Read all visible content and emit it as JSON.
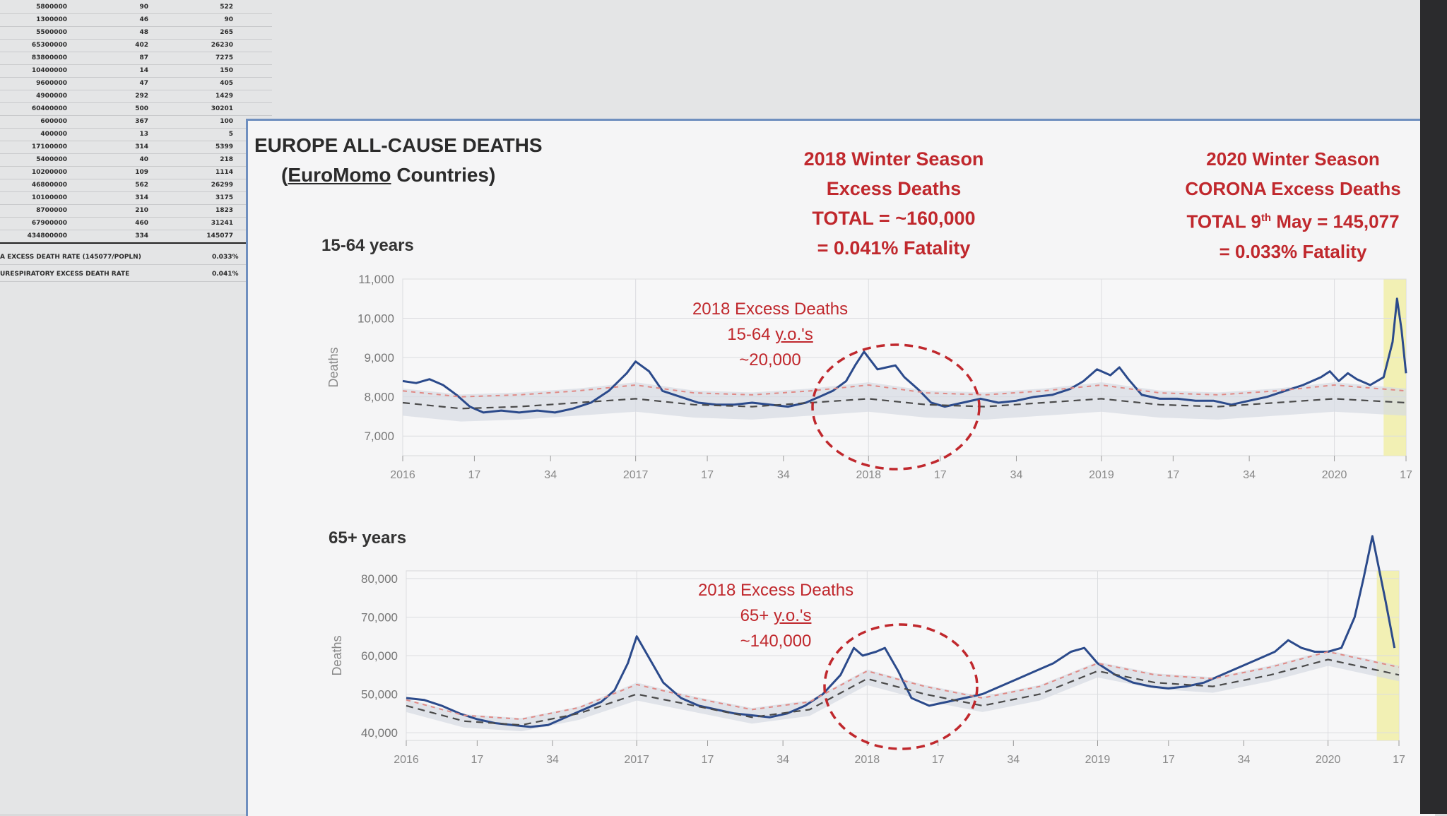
{
  "spreadsheet": {
    "rows": [
      [
        "5800000",
        "90",
        "522"
      ],
      [
        "1300000",
        "46",
        "90"
      ],
      [
        "5500000",
        "48",
        "265"
      ],
      [
        "65300000",
        "402",
        "26230"
      ],
      [
        "83800000",
        "87",
        "7275"
      ],
      [
        "10400000",
        "14",
        "150"
      ],
      [
        "9600000",
        "47",
        "405"
      ],
      [
        "4900000",
        "292",
        "1429"
      ],
      [
        "60400000",
        "500",
        "30201"
      ],
      [
        "600000",
        "367",
        "100"
      ],
      [
        "400000",
        "13",
        "5"
      ],
      [
        "17100000",
        "314",
        "5399"
      ],
      [
        "5400000",
        "40",
        "218"
      ],
      [
        "10200000",
        "109",
        "1114"
      ],
      [
        "46800000",
        "562",
        "26299"
      ],
      [
        "10100000",
        "314",
        "3175"
      ],
      [
        "8700000",
        "210",
        "1823"
      ],
      [
        "67900000",
        "460",
        "31241"
      ]
    ],
    "total": [
      "434800000",
      "334",
      "145077"
    ],
    "notes": [
      {
        "label": "A EXCESS DEATH RATE (145077/POPLN)",
        "value": "0.033%"
      },
      {
        "label": "URESPIRATORY EXCESS DEATH RATE",
        "value": "0.041%"
      }
    ]
  },
  "slide": {
    "title_line1": "EUROPE ALL-CAUSE DEATHS",
    "title_line2_open": "(",
    "title_line2_link": "EuroMomo",
    "title_line2_rest": " Countries)",
    "winter2018": {
      "line1": "2018 Winter Season",
      "line2": "Excess Deaths",
      "line3": "TOTAL = ~160,000",
      "line4": "= 0.041% Fatality"
    },
    "winter2020": {
      "line1": "2020 Winter Season",
      "line2": "CORONA Excess Deaths",
      "line3_pre": "TOTAL 9",
      "line3_sup": "th",
      "line3_post": " May = 145,077",
      "line4": "= 0.033% Fatality"
    },
    "chart1_label": "15-64 years",
    "chart2_label": "65+ years",
    "ann1": {
      "line1": "2018 Excess Deaths",
      "line2_pre": "15-64 ",
      "line2_u": "y.o.'s",
      "line3": "~20,000"
    },
    "ann2": {
      "line1": "2018 Excess Deaths",
      "line2_pre": "65+ ",
      "line2_u": "y.o.'s",
      "line3": "~140,000"
    }
  },
  "colors": {
    "observed": "#2b4a8b",
    "baseline": "#4a4a4a",
    "threshold": "#e08a86",
    "band": "#d5dae3",
    "annotation": "#c0282d",
    "highlight": "#f1eea8"
  },
  "chart_data": [
    {
      "type": "line",
      "title": "15-64 years",
      "ylabel": "Deaths",
      "ylim": [
        6500,
        11000
      ],
      "yticks": [
        7000,
        8000,
        9000,
        10000,
        11000
      ],
      "ytick_labels": [
        "7,000",
        "8,000",
        "9,000",
        "10,000",
        "11,000"
      ],
      "xticks": [
        {
          "week": 0,
          "label": "2016"
        },
        {
          "week": 16,
          "label": "17"
        },
        {
          "week": 33,
          "label": "34"
        },
        {
          "week": 52,
          "label": "2017"
        },
        {
          "week": 68,
          "label": "17"
        },
        {
          "week": 85,
          "label": "34"
        },
        {
          "week": 104,
          "label": "2018"
        },
        {
          "week": 120,
          "label": "17"
        },
        {
          "week": 137,
          "label": "34"
        },
        {
          "week": 156,
          "label": "2019"
        },
        {
          "week": 172,
          "label": "17"
        },
        {
          "week": 189,
          "label": "34"
        },
        {
          "week": 208,
          "label": "2020"
        },
        {
          "week": 224,
          "label": "17"
        }
      ],
      "series": [
        {
          "role": "observed",
          "points": [
            [
              0,
              8400
            ],
            [
              3,
              8350
            ],
            [
              6,
              8450
            ],
            [
              9,
              8300
            ],
            [
              12,
              8050
            ],
            [
              15,
              7750
            ],
            [
              18,
              7600
            ],
            [
              22,
              7650
            ],
            [
              26,
              7600
            ],
            [
              30,
              7650
            ],
            [
              34,
              7600
            ],
            [
              38,
              7700
            ],
            [
              42,
              7850
            ],
            [
              46,
              8150
            ],
            [
              50,
              8600
            ],
            [
              52,
              8900
            ],
            [
              55,
              8650
            ],
            [
              58,
              8150
            ],
            [
              62,
              8000
            ],
            [
              66,
              7850
            ],
            [
              70,
              7800
            ],
            [
              74,
              7800
            ],
            [
              78,
              7850
            ],
            [
              82,
              7800
            ],
            [
              86,
              7750
            ],
            [
              90,
              7850
            ],
            [
              93,
              8000
            ],
            [
              96,
              8150
            ],
            [
              99,
              8400
            ],
            [
              101,
              8800
            ],
            [
              103,
              9150
            ],
            [
              106,
              8700
            ],
            [
              108,
              8750
            ],
            [
              110,
              8800
            ],
            [
              112,
              8500
            ],
            [
              115,
              8200
            ],
            [
              118,
              7850
            ],
            [
              121,
              7750
            ],
            [
              125,
              7850
            ],
            [
              129,
              7950
            ],
            [
              133,
              7850
            ],
            [
              137,
              7900
            ],
            [
              141,
              8000
            ],
            [
              145,
              8050
            ],
            [
              149,
              8200
            ],
            [
              152,
              8400
            ],
            [
              155,
              8700
            ],
            [
              158,
              8550
            ],
            [
              160,
              8750
            ],
            [
              162,
              8450
            ],
            [
              165,
              8050
            ],
            [
              169,
              7950
            ],
            [
              173,
              7950
            ],
            [
              177,
              7900
            ],
            [
              181,
              7900
            ],
            [
              185,
              7800
            ],
            [
              189,
              7900
            ],
            [
              193,
              8000
            ],
            [
              197,
              8150
            ],
            [
              201,
              8300
            ],
            [
              205,
              8500
            ],
            [
              207,
              8650
            ],
            [
              209,
              8400
            ],
            [
              211,
              8600
            ],
            [
              213,
              8450
            ],
            [
              216,
              8300
            ],
            [
              219,
              8500
            ],
            [
              221,
              9400
            ],
            [
              222,
              10500
            ],
            [
              223,
              9700
            ],
            [
              224,
              8600
            ]
          ]
        },
        {
          "role": "baseline",
          "points": [
            [
              0,
              7850
            ],
            [
              13,
              7700
            ],
            [
              26,
              7750
            ],
            [
              39,
              7850
            ],
            [
              52,
              7950
            ],
            [
              65,
              7800
            ],
            [
              78,
              7750
            ],
            [
              91,
              7850
            ],
            [
              104,
              7950
            ],
            [
              117,
              7800
            ],
            [
              130,
              7750
            ],
            [
              143,
              7850
            ],
            [
              156,
              7950
            ],
            [
              169,
              7800
            ],
            [
              182,
              7750
            ],
            [
              195,
              7850
            ],
            [
              208,
              7950
            ],
            [
              224,
              7850
            ]
          ]
        },
        {
          "role": "threshold",
          "points": [
            [
              0,
              8150
            ],
            [
              13,
              8000
            ],
            [
              26,
              8050
            ],
            [
              39,
              8150
            ],
            [
              52,
              8300
            ],
            [
              65,
              8100
            ],
            [
              78,
              8050
            ],
            [
              91,
              8150
            ],
            [
              104,
              8300
            ],
            [
              117,
              8100
            ],
            [
              130,
              8050
            ],
            [
              143,
              8150
            ],
            [
              156,
              8300
            ],
            [
              169,
              8100
            ],
            [
              182,
              8050
            ],
            [
              195,
              8150
            ],
            [
              208,
              8300
            ],
            [
              224,
              8150
            ]
          ]
        }
      ]
    },
    {
      "type": "line",
      "title": "65+ years",
      "ylabel": "Deaths",
      "ylim": [
        38000,
        82000
      ],
      "yticks": [
        40000,
        50000,
        60000,
        70000,
        80000
      ],
      "ytick_labels": [
        "40,000",
        "50,000",
        "60,000",
        "70,000",
        "80,000"
      ],
      "xticks": [
        {
          "week": 0,
          "label": "2016"
        },
        {
          "week": 16,
          "label": "17"
        },
        {
          "week": 33,
          "label": "34"
        },
        {
          "week": 52,
          "label": "2017"
        },
        {
          "week": 68,
          "label": "17"
        },
        {
          "week": 85,
          "label": "34"
        },
        {
          "week": 104,
          "label": "2018"
        },
        {
          "week": 120,
          "label": "17"
        },
        {
          "week": 137,
          "label": "34"
        },
        {
          "week": 156,
          "label": "2019"
        },
        {
          "week": 172,
          "label": "17"
        },
        {
          "week": 189,
          "label": "34"
        },
        {
          "week": 208,
          "label": "2020"
        },
        {
          "week": 224,
          "label": "17"
        }
      ],
      "series": [
        {
          "role": "observed",
          "points": [
            [
              0,
              49000
            ],
            [
              4,
              48500
            ],
            [
              8,
              47000
            ],
            [
              12,
              45000
            ],
            [
              16,
              43500
            ],
            [
              20,
              42500
            ],
            [
              24,
              42000
            ],
            [
              28,
              41500
            ],
            [
              32,
              42000
            ],
            [
              36,
              44000
            ],
            [
              40,
              46000
            ],
            [
              44,
              48000
            ],
            [
              47,
              51000
            ],
            [
              50,
              58000
            ],
            [
              52,
              65000
            ],
            [
              55,
              59000
            ],
            [
              58,
              53000
            ],
            [
              62,
              49000
            ],
            [
              66,
              47000
            ],
            [
              70,
              46000
            ],
            [
              74,
              45000
            ],
            [
              78,
              44500
            ],
            [
              82,
              44000
            ],
            [
              86,
              45000
            ],
            [
              90,
              47000
            ],
            [
              94,
              50000
            ],
            [
              98,
              55000
            ],
            [
              101,
              62000
            ],
            [
              103,
              60000
            ],
            [
              106,
              61000
            ],
            [
              108,
              62000
            ],
            [
              111,
              56000
            ],
            [
              114,
              49000
            ],
            [
              118,
              47000
            ],
            [
              122,
              48000
            ],
            [
              126,
              49000
            ],
            [
              130,
              50000
            ],
            [
              134,
              52000
            ],
            [
              138,
              54000
            ],
            [
              142,
              56000
            ],
            [
              146,
              58000
            ],
            [
              150,
              61000
            ],
            [
              153,
              62000
            ],
            [
              156,
              58000
            ],
            [
              160,
              55000
            ],
            [
              164,
              53000
            ],
            [
              168,
              52000
            ],
            [
              172,
              51500
            ],
            [
              176,
              52000
            ],
            [
              180,
              53000
            ],
            [
              184,
              55000
            ],
            [
              188,
              57000
            ],
            [
              192,
              59000
            ],
            [
              196,
              61000
            ],
            [
              199,
              64000
            ],
            [
              202,
              62000
            ],
            [
              205,
              61000
            ],
            [
              208,
              61000
            ],
            [
              211,
              62000
            ],
            [
              214,
              70000
            ],
            [
              216,
              80000
            ],
            [
              218,
              91000
            ],
            [
              221,
              74000
            ],
            [
              223,
              62000
            ]
          ]
        },
        {
          "role": "baseline",
          "points": [
            [
              0,
              47000
            ],
            [
              13,
              43000
            ],
            [
              26,
              42000
            ],
            [
              39,
              45000
            ],
            [
              52,
              50000
            ],
            [
              65,
              47000
            ],
            [
              78,
              44000
            ],
            [
              91,
              46000
            ],
            [
              104,
              54000
            ],
            [
              117,
              50000
            ],
            [
              130,
              47000
            ],
            [
              143,
              50000
            ],
            [
              156,
              56000
            ],
            [
              169,
              53000
            ],
            [
              182,
              52000
            ],
            [
              195,
              55000
            ],
            [
              208,
              59000
            ],
            [
              224,
              55000
            ]
          ]
        },
        {
          "role": "threshold",
          "points": [
            [
              0,
              48500
            ],
            [
              13,
              44500
            ],
            [
              26,
              43500
            ],
            [
              39,
              46500
            ],
            [
              52,
              52500
            ],
            [
              65,
              49000
            ],
            [
              78,
              46000
            ],
            [
              91,
              48000
            ],
            [
              104,
              56000
            ],
            [
              117,
              52000
            ],
            [
              130,
              49000
            ],
            [
              143,
              52000
            ],
            [
              156,
              58000
            ],
            [
              169,
              55000
            ],
            [
              182,
              54000
            ],
            [
              195,
              57000
            ],
            [
              208,
              61000
            ],
            [
              224,
              57000
            ]
          ]
        }
      ]
    }
  ]
}
